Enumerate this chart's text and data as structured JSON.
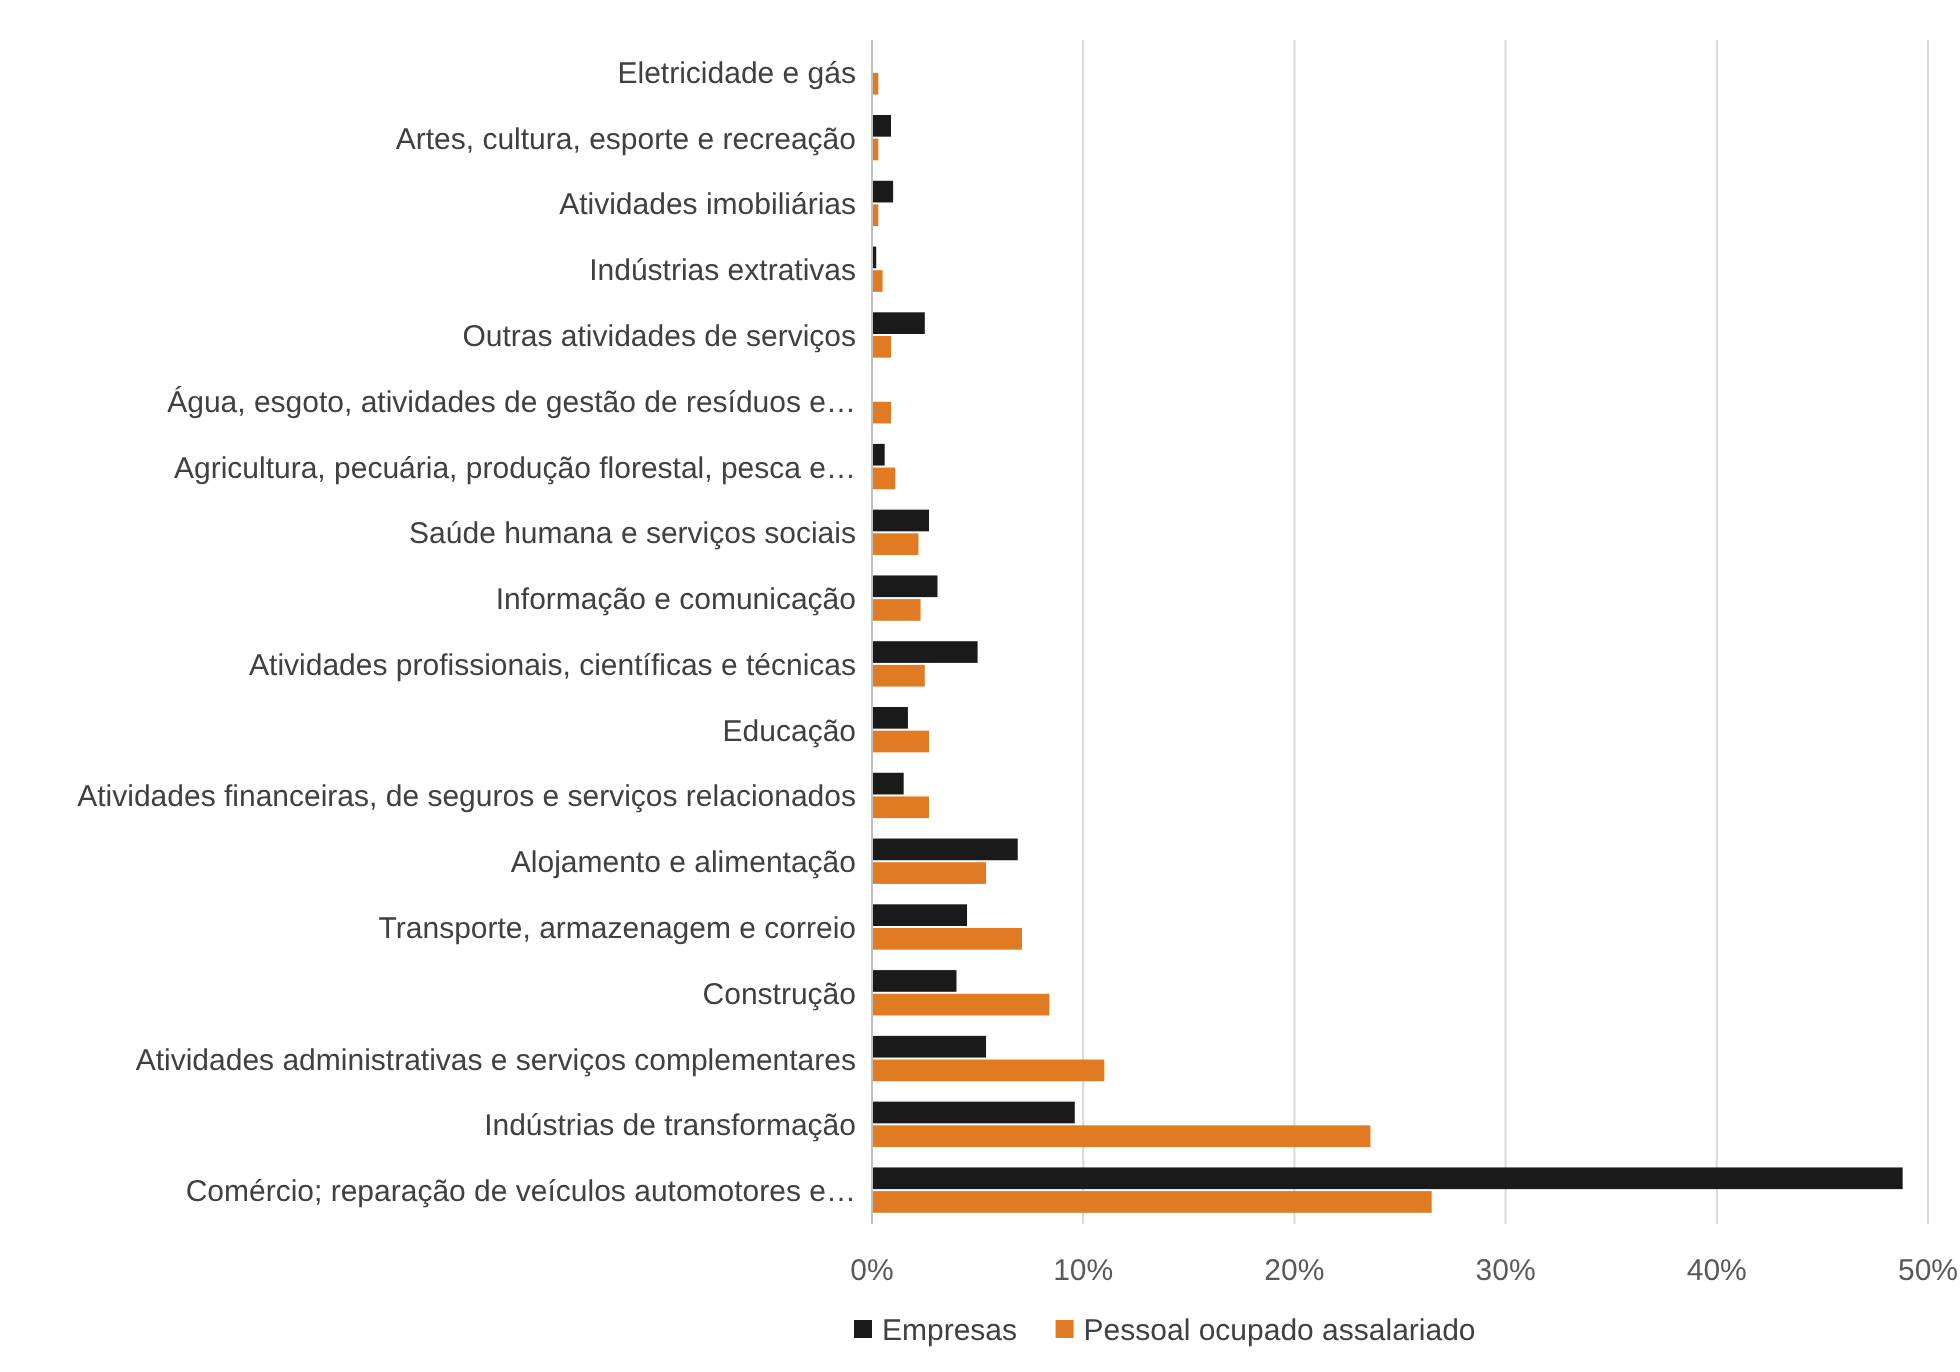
{
  "chart_data": {
    "type": "bar",
    "orientation": "horizontal",
    "categories": [
      "Eletricidade e gás",
      "Artes, cultura, esporte e recreação",
      "Atividades imobiliárias",
      "Indústrias extrativas",
      "Outras atividades de serviços",
      "Água, esgoto, atividades de gestão de resíduos e…",
      "Agricultura, pecuária, produção florestal, pesca e…",
      "Saúde humana e serviços sociais",
      "Informação e comunicação",
      "Atividades profissionais, científicas e técnicas",
      "Educação",
      "Atividades financeiras, de seguros e serviços relacionados",
      "Alojamento e alimentação",
      "Transporte, armazenagem e correio",
      "Construção",
      "Atividades administrativas e serviços complementares",
      "Indústrias de transformação",
      "Comércio; reparação de veículos automotores e…"
    ],
    "series": [
      {
        "name": "Empresas",
        "color": "#1a1a1a",
        "values": [
          0,
          0.9,
          1.0,
          0.2,
          2.5,
          0,
          0.6,
          2.7,
          3.1,
          5.0,
          1.7,
          1.5,
          6.9,
          4.5,
          4.0,
          5.4,
          9.6,
          48.8
        ]
      },
      {
        "name": "Pessoal ocupado assalariado",
        "color": "#e07b24",
        "values": [
          0.3,
          0.3,
          0.3,
          0.5,
          0.9,
          0.9,
          1.1,
          2.2,
          2.3,
          2.5,
          2.7,
          2.7,
          5.4,
          7.1,
          8.4,
          11.0,
          23.6,
          26.5
        ]
      }
    ],
    "xlim": [
      0,
      50
    ],
    "xticks": [
      {
        "value": 0,
        "label": "0%"
      },
      {
        "value": 10,
        "label": "10%"
      },
      {
        "value": 20,
        "label": "20%"
      },
      {
        "value": 30,
        "label": "30%"
      },
      {
        "value": 40,
        "label": "40%"
      },
      {
        "value": 50,
        "label": "50%"
      }
    ],
    "grid": "x",
    "legend": "bottom"
  }
}
